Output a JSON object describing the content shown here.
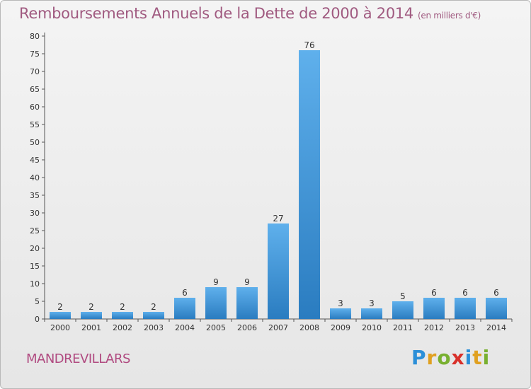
{
  "header": {
    "title": "Remboursements Annuels de la Dette de 2000 à 2014",
    "unit": "(en milliers d'€)"
  },
  "footer": {
    "commune": "MANDREVILLARS",
    "logo": [
      "P",
      "r",
      "o",
      "x",
      "i",
      "t",
      "i"
    ]
  },
  "colors": {
    "bar_light": "#5fb0ec",
    "bar_dark": "#2a7cc0",
    "title": "#a05a80"
  },
  "chart_data": {
    "type": "bar",
    "title": "Remboursements Annuels de la Dette de 2000 à 2014",
    "unit": "(en milliers d'€)",
    "xlabel": "",
    "ylabel": "",
    "categories": [
      "2000",
      "2001",
      "2002",
      "2003",
      "2004",
      "2005",
      "2006",
      "2007",
      "2008",
      "2009",
      "2010",
      "2011",
      "2012",
      "2013",
      "2014"
    ],
    "values": [
      2,
      2,
      2,
      2,
      6,
      9,
      9,
      27,
      76,
      3,
      3,
      5,
      6,
      6,
      6
    ],
    "ylim": [
      0,
      80
    ],
    "yticks": [
      0,
      5,
      10,
      15,
      20,
      25,
      30,
      35,
      40,
      45,
      50,
      55,
      60,
      65,
      70,
      75,
      80
    ],
    "grid": false,
    "legend": "none"
  }
}
